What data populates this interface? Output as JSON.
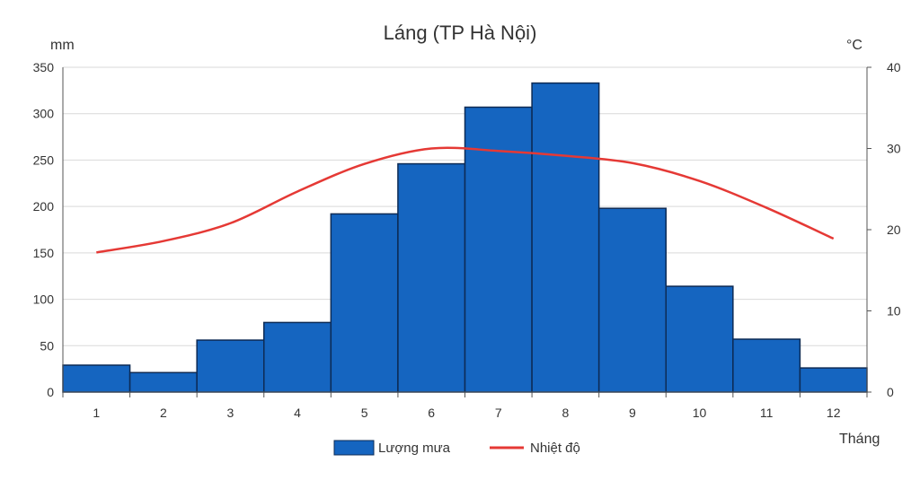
{
  "chart_data": {
    "type": "bar",
    "title": "Láng (TP Hà Nội)",
    "xlabel": "Tháng",
    "ylabel_left": "mm",
    "ylabel_right": "°C",
    "categories": [
      "1",
      "2",
      "3",
      "4",
      "5",
      "6",
      "7",
      "8",
      "9",
      "10",
      "11",
      "12"
    ],
    "y_left_ticks": [
      "0",
      "50",
      "100",
      "150",
      "200",
      "250",
      "300",
      "350"
    ],
    "y_right_ticks": [
      "0",
      "10",
      "20",
      "30",
      "40"
    ],
    "ylim_left": [
      0,
      350
    ],
    "ylim_right": [
      0,
      40
    ],
    "grid": true,
    "legend_position": "bottom",
    "series": [
      {
        "name": "Lượng mưa",
        "type": "bar",
        "axis": "left",
        "color": "#1565c0",
        "values": [
          29,
          21,
          56,
          75,
          192,
          246,
          307,
          333,
          198,
          114,
          57,
          26
        ]
      },
      {
        "name": "Nhiệt độ",
        "type": "line",
        "axis": "right",
        "color": "#e53935",
        "values": [
          17.2,
          18.6,
          20.8,
          24.7,
          28.1,
          30.0,
          29.7,
          29.1,
          28.2,
          26.0,
          22.7,
          18.9
        ]
      }
    ]
  }
}
